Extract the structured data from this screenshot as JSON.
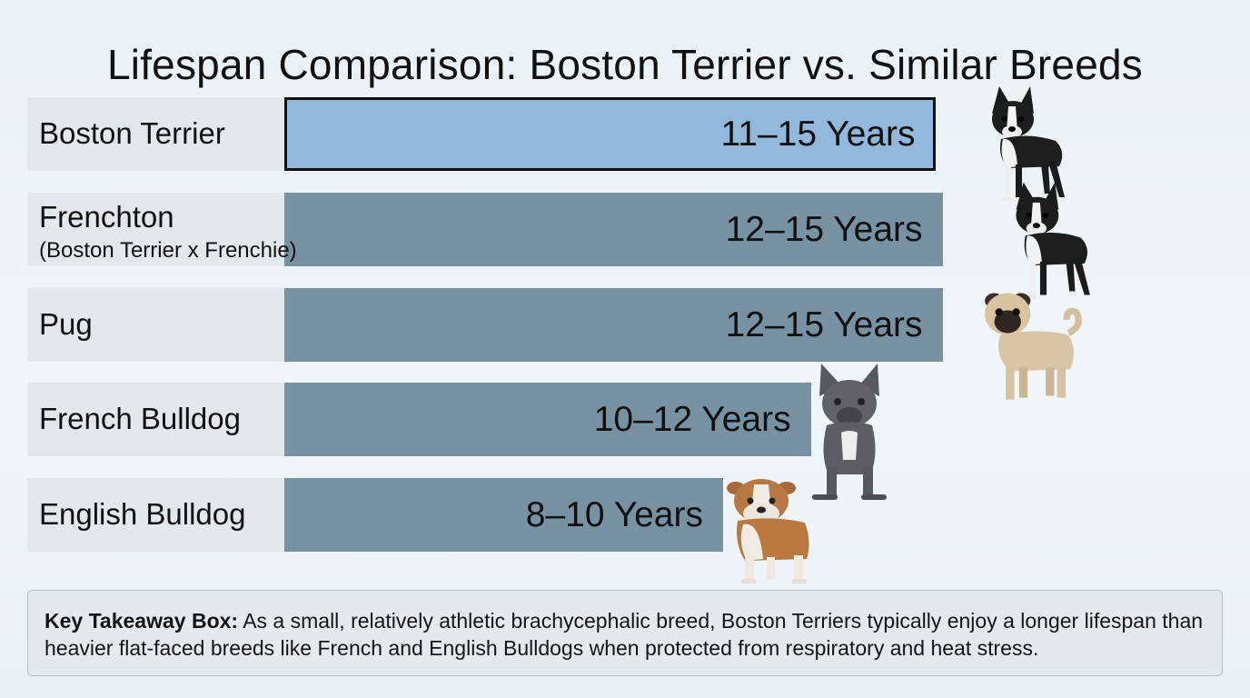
{
  "title": "Lifespan Comparison: Boston Terrier vs. Similar Breeds",
  "chart_data": {
    "type": "bar",
    "orientation": "horizontal",
    "title": "Lifespan Comparison: Boston Terrier vs. Similar Breeds",
    "unit": "Years",
    "categories": [
      "Boston Terrier",
      "Frenchton",
      "Pug",
      "French Bulldog",
      "English Bulldog"
    ],
    "category_notes": [
      "",
      "(Boston Terrier x Frenchie)",
      "",
      "",
      ""
    ],
    "ranges": [
      [
        11,
        15
      ],
      [
        12,
        15
      ],
      [
        12,
        15
      ],
      [
        10,
        12
      ],
      [
        8,
        10
      ]
    ],
    "value_labels": [
      "11–15 Years",
      "12–15 Years",
      "12–15 Years",
      "10–12 Years",
      "8–10 Years"
    ],
    "highlighted": "Boston Terrier",
    "colors": {
      "highlight": "#92b9dc",
      "bar": "#7692a3",
      "label_bg": "#e3e8ed"
    },
    "dog_icons": [
      "boston-terrier-dog-icon",
      "frenchton-dog-icon",
      "pug-dog-icon",
      "french-bulldog-dog-icon",
      "english-bulldog-dog-icon"
    ]
  },
  "takeaway": {
    "heading": "Key Takeaway Box:",
    "text": " As a small, relatively athletic brachycephalic breed, Boston Terriers typically enjoy a longer lifespan than heavier flat-faced breeds like French and English Bulldogs when protected from respiratory and heat stress."
  }
}
